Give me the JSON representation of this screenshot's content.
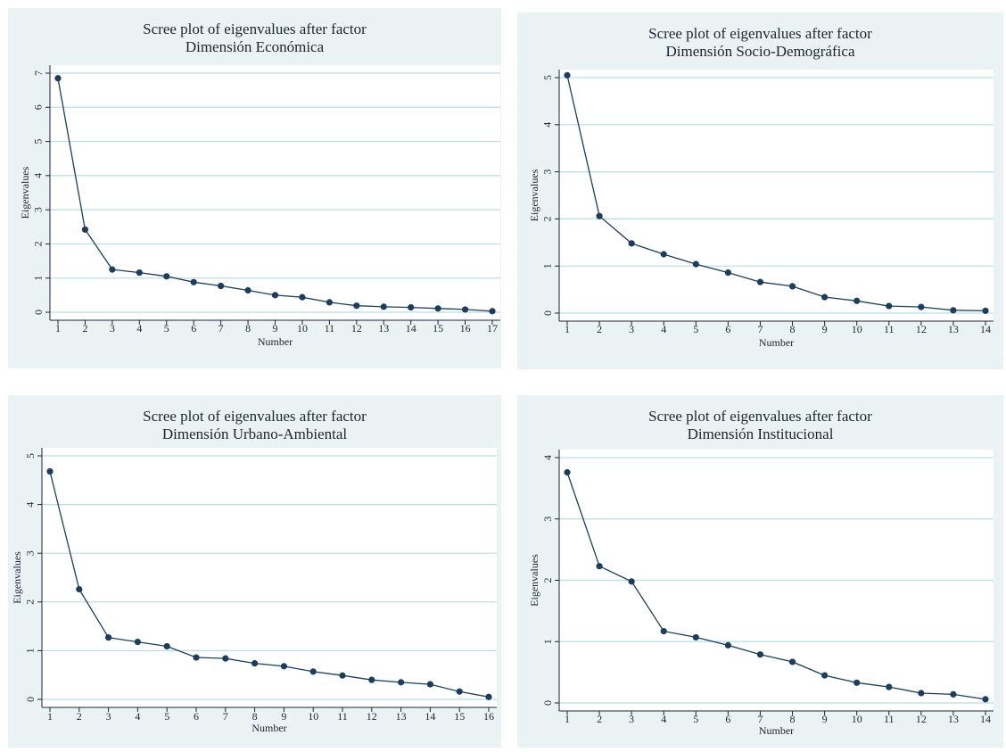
{
  "chart_data": [
    {
      "type": "line",
      "title": "Scree plot of eigenvalues after factor",
      "subtitle": "Dimensión Económica",
      "xlabel": "Number",
      "ylabel": "Eigenvalues",
      "x": [
        1,
        2,
        3,
        4,
        5,
        6,
        7,
        8,
        9,
        10,
        11,
        12,
        13,
        14,
        15,
        16,
        17
      ],
      "y": [
        6.85,
        2.42,
        1.25,
        1.16,
        1.05,
        0.88,
        0.77,
        0.64,
        0.5,
        0.44,
        0.29,
        0.19,
        0.16,
        0.14,
        0.11,
        0.08,
        0.03
      ],
      "ylim": [
        0,
        7
      ],
      "yticks": [
        "0",
        "1",
        "2",
        "3",
        "4",
        "5",
        "6",
        "7"
      ],
      "xticks": [
        "1",
        "2",
        "3",
        "4",
        "5",
        "6",
        "7",
        "8",
        "9",
        "10",
        "11",
        "12",
        "13",
        "14",
        "15",
        "16",
        "17"
      ],
      "grid": true
    },
    {
      "type": "line",
      "title": "Scree plot of eigenvalues after factor",
      "subtitle": "Dimensión Socio-Demográfica",
      "xlabel": "Number",
      "ylabel": "Eigenvalues",
      "x": [
        1,
        2,
        3,
        4,
        5,
        6,
        7,
        8,
        9,
        10,
        11,
        12,
        13,
        14
      ],
      "y": [
        5.05,
        2.06,
        1.48,
        1.25,
        1.04,
        0.86,
        0.66,
        0.57,
        0.34,
        0.26,
        0.15,
        0.13,
        0.06,
        0.05
      ],
      "ylim": [
        0,
        5
      ],
      "yticks": [
        "0",
        "1",
        "2",
        "3",
        "4",
        "5"
      ],
      "xticks": [
        "1",
        "2",
        "3",
        "4",
        "5",
        "6",
        "7",
        "8",
        "9",
        "10",
        "11",
        "12",
        "13",
        "14"
      ],
      "grid": true
    },
    {
      "type": "line",
      "title": "Scree plot of eigenvalues after factor",
      "subtitle": "Dimensión Urbano-Ambiental",
      "xlabel": "Number",
      "ylabel": "Eigenvalues",
      "x": [
        1,
        2,
        3,
        4,
        5,
        6,
        7,
        8,
        9,
        10,
        11,
        12,
        13,
        14,
        15,
        16
      ],
      "y": [
        4.68,
        2.26,
        1.27,
        1.18,
        1.09,
        0.86,
        0.84,
        0.74,
        0.68,
        0.57,
        0.49,
        0.4,
        0.35,
        0.31,
        0.16,
        0.05
      ],
      "ylim": [
        0,
        5
      ],
      "yticks": [
        "0",
        "1",
        "2",
        "3",
        "4",
        "5"
      ],
      "xticks": [
        "1",
        "2",
        "3",
        "4",
        "5",
        "6",
        "7",
        "8",
        "9",
        "10",
        "11",
        "12",
        "13",
        "14",
        "15",
        "16"
      ],
      "grid": true
    },
    {
      "type": "line",
      "title": "Scree plot of eigenvalues after factor",
      "subtitle": "Dimensión Institucional",
      "xlabel": "Number",
      "ylabel": "Eigenvalues",
      "x": [
        1,
        2,
        3,
        4,
        5,
        6,
        7,
        8,
        9,
        10,
        11,
        12,
        13,
        14
      ],
      "y": [
        3.76,
        2.23,
        1.98,
        1.17,
        1.07,
        0.94,
        0.79,
        0.67,
        0.45,
        0.33,
        0.26,
        0.16,
        0.14,
        0.06
      ],
      "ylim": [
        0,
        4
      ],
      "yticks": [
        "0",
        "1",
        "2",
        "3",
        "4"
      ],
      "xticks": [
        "1",
        "2",
        "3",
        "4",
        "5",
        "6",
        "7",
        "8",
        "9",
        "10",
        "11",
        "12",
        "13",
        "14"
      ],
      "grid": true
    }
  ],
  "colors": {
    "panel_background": "#eaf2f3",
    "plot_background": "#ffffff",
    "gridline": "#b9dde6",
    "series": "#1d3d5c"
  }
}
